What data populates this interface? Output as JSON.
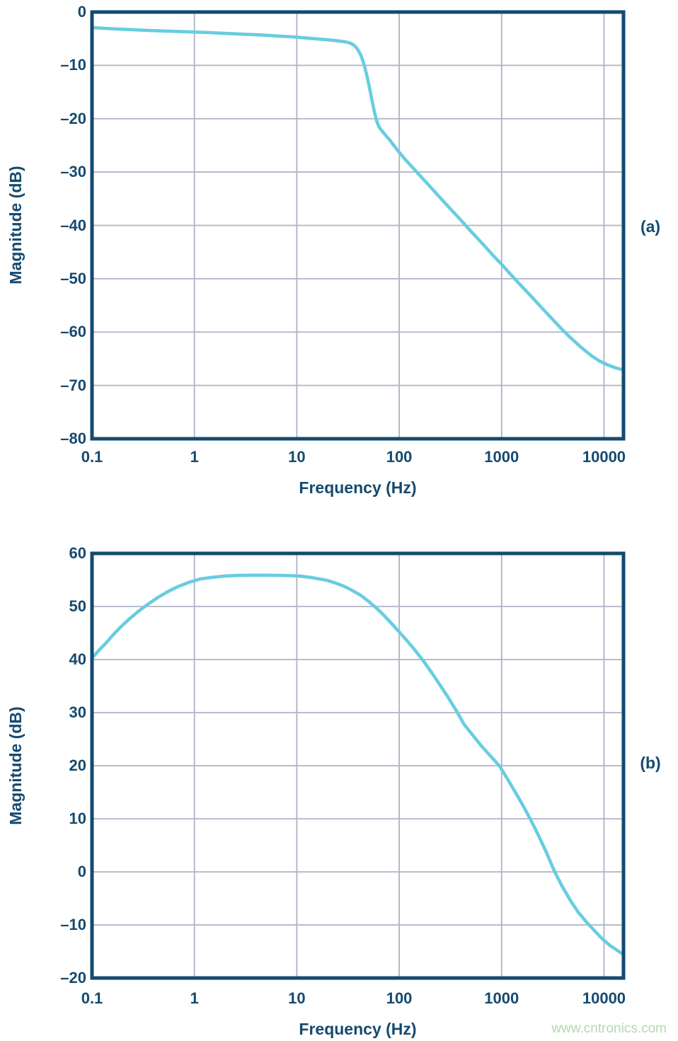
{
  "styles": {
    "background": "#ffffff",
    "axis_color": "#154a6f",
    "grid_color": "#b0b2c5",
    "curve_color": "#68cde0",
    "text_color": "#154a6f",
    "watermark_color": "#b4d8af"
  },
  "watermark": {
    "text": "www.cntronics.com"
  },
  "chart_data": [
    {
      "id": "a",
      "type": "line",
      "panel_label": "(a)",
      "title": "",
      "xlabel": "Frequency (Hz)",
      "ylabel": "Magnitude (dB)",
      "x_scale": "log",
      "xlim": [
        0.1,
        15500
      ],
      "ylim": [
        -80,
        0
      ],
      "x_ticks": [
        0.1,
        1,
        10,
        100,
        1000,
        10000
      ],
      "x_tick_labels": [
        "0.1",
        "1",
        "10",
        "100",
        "1000",
        "10000"
      ],
      "y_ticks": [
        0,
        -10,
        -20,
        -30,
        -40,
        -50,
        -60,
        -70,
        -80
      ],
      "y_tick_labels": [
        "0",
        "–10",
        "–20",
        "–30",
        "–40",
        "–50",
        "–60",
        "–70",
        "–80"
      ],
      "grid": true,
      "legend": "none",
      "series": [
        {
          "name": "magnitude_response",
          "points": [
            [
              0.1,
              -2.9
            ],
            [
              0.13,
              -3.05
            ],
            [
              0.18,
              -3.2
            ],
            [
              0.25,
              -3.3
            ],
            [
              0.35,
              -3.45
            ],
            [
              0.5,
              -3.55
            ],
            [
              0.7,
              -3.65
            ],
            [
              1,
              -3.75
            ],
            [
              1.4,
              -3.85
            ],
            [
              2,
              -4.0
            ],
            [
              3,
              -4.15
            ],
            [
              4.5,
              -4.3
            ],
            [
              6.5,
              -4.5
            ],
            [
              9,
              -4.65
            ],
            [
              12,
              -4.85
            ],
            [
              16,
              -5.05
            ],
            [
              20,
              -5.2
            ],
            [
              25,
              -5.4
            ],
            [
              30,
              -5.6
            ],
            [
              33,
              -5.8
            ],
            [
              36,
              -6.2
            ],
            [
              39,
              -6.9
            ],
            [
              42,
              -8.0
            ],
            [
              45,
              -9.6
            ],
            [
              48,
              -11.7
            ],
            [
              51,
              -14.0
            ],
            [
              54,
              -16.4
            ],
            [
              57,
              -18.6
            ],
            [
              60,
              -20.3
            ],
            [
              63,
              -21.4
            ],
            [
              66,
              -22.0
            ],
            [
              70,
              -22.6
            ],
            [
              75,
              -23.3
            ],
            [
              80,
              -23.9
            ],
            [
              90,
              -25.2
            ],
            [
              100,
              -26.3
            ],
            [
              115,
              -27.7
            ],
            [
              130,
              -28.8
            ],
            [
              150,
              -30.1
            ],
            [
              175,
              -31.5
            ],
            [
              200,
              -32.7
            ],
            [
              240,
              -34.4
            ],
            [
              280,
              -35.8
            ],
            [
              330,
              -37.3
            ],
            [
              400,
              -39.0
            ],
            [
              480,
              -40.7
            ],
            [
              580,
              -42.4
            ],
            [
              700,
              -44.1
            ],
            [
              850,
              -45.9
            ],
            [
              1000,
              -47.3
            ],
            [
              1200,
              -49.0
            ],
            [
              1500,
              -51.0
            ],
            [
              1900,
              -53.1
            ],
            [
              2400,
              -55.2
            ],
            [
              3000,
              -57.2
            ],
            [
              3800,
              -59.3
            ],
            [
              4800,
              -61.2
            ],
            [
              6000,
              -62.9
            ],
            [
              7500,
              -64.4
            ],
            [
              9000,
              -65.4
            ],
            [
              11000,
              -66.2
            ],
            [
              13000,
              -66.7
            ],
            [
              15500,
              -67.1
            ]
          ]
        }
      ]
    },
    {
      "id": "b",
      "type": "line",
      "panel_label": "(b)",
      "title": "",
      "xlabel": "Frequency (Hz)",
      "ylabel": "Magnitude (dB)",
      "x_scale": "log",
      "xlim": [
        0.1,
        15500
      ],
      "ylim": [
        -20,
        60
      ],
      "x_ticks": [
        0.1,
        1,
        10,
        100,
        1000,
        10000
      ],
      "x_tick_labels": [
        "0.1",
        "1",
        "10",
        "100",
        "1000",
        "10000"
      ],
      "y_ticks": [
        60,
        50,
        40,
        30,
        20,
        10,
        0,
        -10,
        -20
      ],
      "y_tick_labels": [
        "60",
        "50",
        "40",
        "30",
        "20",
        "10",
        "0",
        "–10",
        "–20"
      ],
      "grid": true,
      "legend": "none",
      "series": [
        {
          "name": "magnitude_response",
          "points": [
            [
              0.1,
              40.3
            ],
            [
              0.115,
              41.6
            ],
            [
              0.135,
              43.0
            ],
            [
              0.16,
              44.6
            ],
            [
              0.19,
              46.1
            ],
            [
              0.23,
              47.6
            ],
            [
              0.28,
              49.0
            ],
            [
              0.35,
              50.4
            ],
            [
              0.44,
              51.7
            ],
            [
              0.55,
              52.8
            ],
            [
              0.7,
              53.8
            ],
            [
              0.9,
              54.6
            ],
            [
              1.15,
              55.2
            ],
            [
              1.5,
              55.5
            ],
            [
              2,
              55.75
            ],
            [
              2.7,
              55.85
            ],
            [
              3.6,
              55.9
            ],
            [
              5,
              55.9
            ],
            [
              7,
              55.85
            ],
            [
              9,
              55.8
            ],
            [
              11,
              55.7
            ],
            [
              13.5,
              55.5
            ],
            [
              16.5,
              55.2
            ],
            [
              20,
              54.9
            ],
            [
              24,
              54.4
            ],
            [
              29,
              53.8
            ],
            [
              35,
              53.0
            ],
            [
              42,
              52.1
            ],
            [
              50,
              51.0
            ],
            [
              60,
              49.7
            ],
            [
              72,
              48.2
            ],
            [
              86,
              46.6
            ],
            [
              100,
              45.2
            ],
            [
              120,
              43.5
            ],
            [
              145,
              41.6
            ],
            [
              176,
              39.5
            ],
            [
              210,
              37.4
            ],
            [
              250,
              35.2
            ],
            [
              300,
              32.9
            ],
            [
              360,
              30.4
            ],
            [
              430,
              27.8
            ],
            [
              520,
              25.8
            ],
            [
              630,
              23.8
            ],
            [
              780,
              21.8
            ],
            [
              950,
              20.0
            ],
            [
              1150,
              17.4
            ],
            [
              1400,
              14.6
            ],
            [
              1650,
              12.2
            ],
            [
              1900,
              10.0
            ],
            [
              2300,
              6.8
            ],
            [
              2750,
              3.6
            ],
            [
              3300,
              0.0
            ],
            [
              3900,
              -2.7
            ],
            [
              4700,
              -5.4
            ],
            [
              5600,
              -7.6
            ],
            [
              6700,
              -9.4
            ],
            [
              8000,
              -11.0
            ],
            [
              9500,
              -12.5
            ],
            [
              11500,
              -13.9
            ],
            [
              13500,
              -14.8
            ],
            [
              15500,
              -15.6
            ]
          ]
        }
      ]
    }
  ]
}
